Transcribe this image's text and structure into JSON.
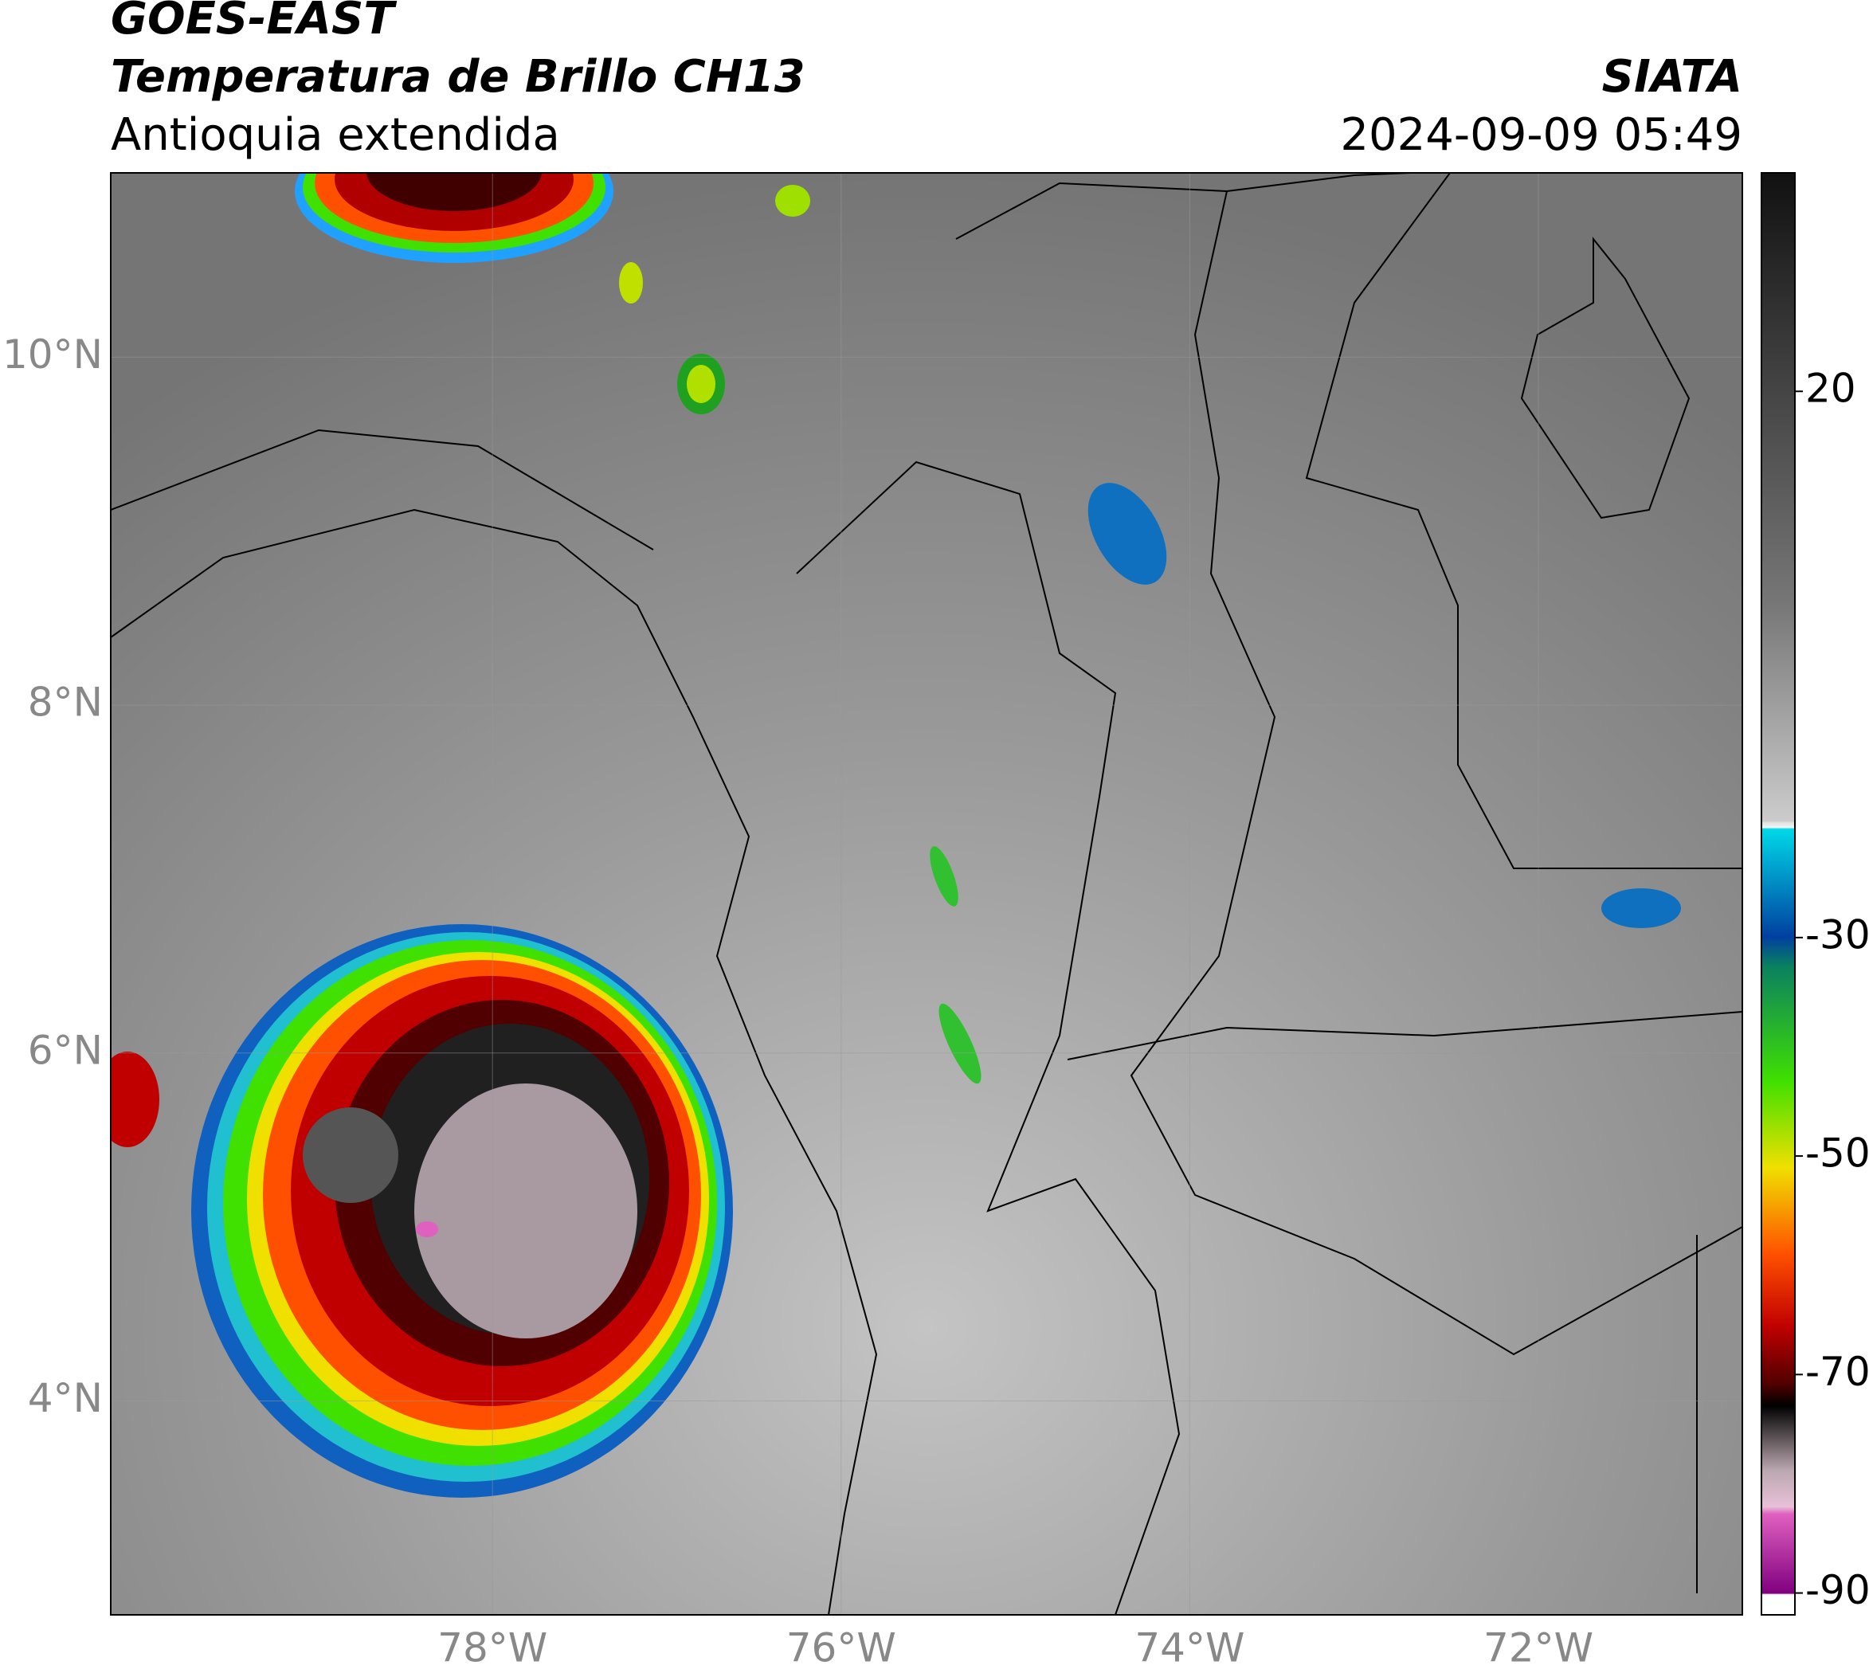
{
  "header": {
    "title_line1": "GOES-EAST",
    "title_line2": "Temperatura de Brillo CH13",
    "subtitle": "Antioquia extendida",
    "source": "SIATA",
    "datetime": "2024-09-09 05:49"
  },
  "map": {
    "xlim": [
      -80.19,
      -70.83
    ],
    "ylim": [
      2.77,
      11.06
    ],
    "xticks": [
      {
        "value": -78,
        "label": "78°W"
      },
      {
        "value": -76,
        "label": "76°W"
      },
      {
        "value": -74,
        "label": "74°W"
      },
      {
        "value": -72,
        "label": "72°W"
      }
    ],
    "yticks": [
      {
        "value": 4,
        "label": "4°N"
      },
      {
        "value": 6,
        "label": "6°N"
      },
      {
        "value": 8,
        "label": "8°N"
      },
      {
        "value": 10,
        "label": "10°N"
      }
    ],
    "grid": true
  },
  "colorbar": {
    "clim": [
      -92,
      40
    ],
    "ticks": [
      20,
      -30,
      -50,
      -70,
      -90
    ]
  }
}
